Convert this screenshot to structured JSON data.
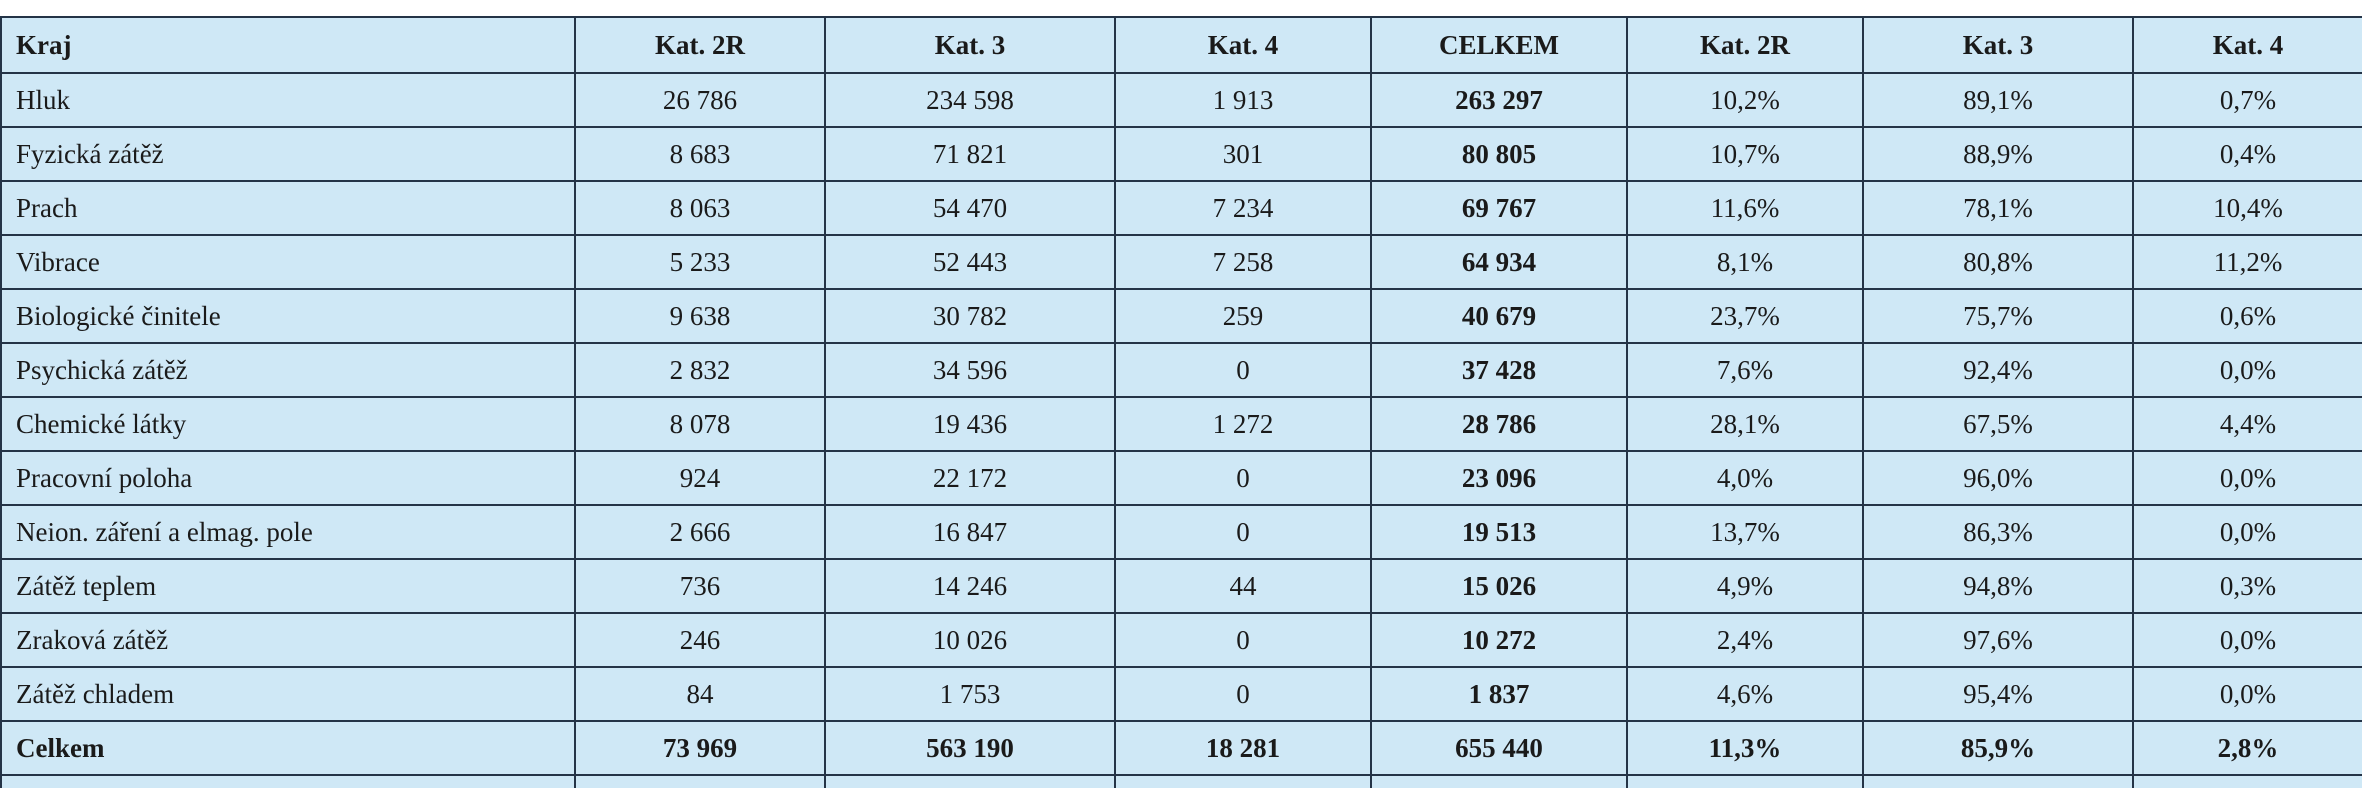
{
  "table": {
    "headers": [
      "Kraj",
      "Kat. 2R",
      "Kat. 3",
      "Kat. 4",
      "CELKEM",
      "Kat. 2R",
      "Kat. 3",
      "Kat. 4"
    ],
    "rows": [
      [
        "Hluk",
        "26 786",
        "234 598",
        "1 913",
        "263 297",
        "10,2%",
        "89,1%",
        "0,7%"
      ],
      [
        "Fyzická zátěž",
        "8 683",
        "71 821",
        "301",
        "80 805",
        "10,7%",
        "88,9%",
        "0,4%"
      ],
      [
        "Prach",
        "8 063",
        "54 470",
        "7 234",
        "69 767",
        "11,6%",
        "78,1%",
        "10,4%"
      ],
      [
        "Vibrace",
        "5 233",
        "52 443",
        "7 258",
        "64 934",
        "8,1%",
        "80,8%",
        "11,2%"
      ],
      [
        "Biologické činitele",
        "9 638",
        "30 782",
        "259",
        "40 679",
        "23,7%",
        "75,7%",
        "0,6%"
      ],
      [
        "Psychická zátěž",
        "2 832",
        "34 596",
        "0",
        "37 428",
        "7,6%",
        "92,4%",
        "0,0%"
      ],
      [
        "Chemické látky",
        "8 078",
        "19 436",
        "1 272",
        "28 786",
        "28,1%",
        "67,5%",
        "4,4%"
      ],
      [
        "Pracovní poloha",
        "924",
        "22 172",
        "0",
        "23 096",
        "4,0%",
        "96,0%",
        "0,0%"
      ],
      [
        "Neion. záření a elmag. pole",
        "2 666",
        "16 847",
        "0",
        "19 513",
        "13,7%",
        "86,3%",
        "0,0%"
      ],
      [
        "Zátěž teplem",
        "736",
        "14 246",
        "44",
        "15 026",
        "4,9%",
        "94,8%",
        "0,3%"
      ],
      [
        "Zraková zátěž",
        "246",
        "10 026",
        "0",
        "10 272",
        "2,4%",
        "97,6%",
        "0,0%"
      ],
      [
        "Zátěž chladem",
        "84",
        "1 753",
        "0",
        "1 837",
        "4,6%",
        "95,4%",
        "0,0%"
      ]
    ],
    "total": [
      "Celkem",
      "73 969",
      "563 190",
      "18 281",
      "655 440",
      "11,3%",
      "85,9%",
      "2,8%"
    ]
  },
  "colors": {
    "cell_background": "#cfe8f6",
    "border": "#243447",
    "text": "#1a1a1a"
  }
}
